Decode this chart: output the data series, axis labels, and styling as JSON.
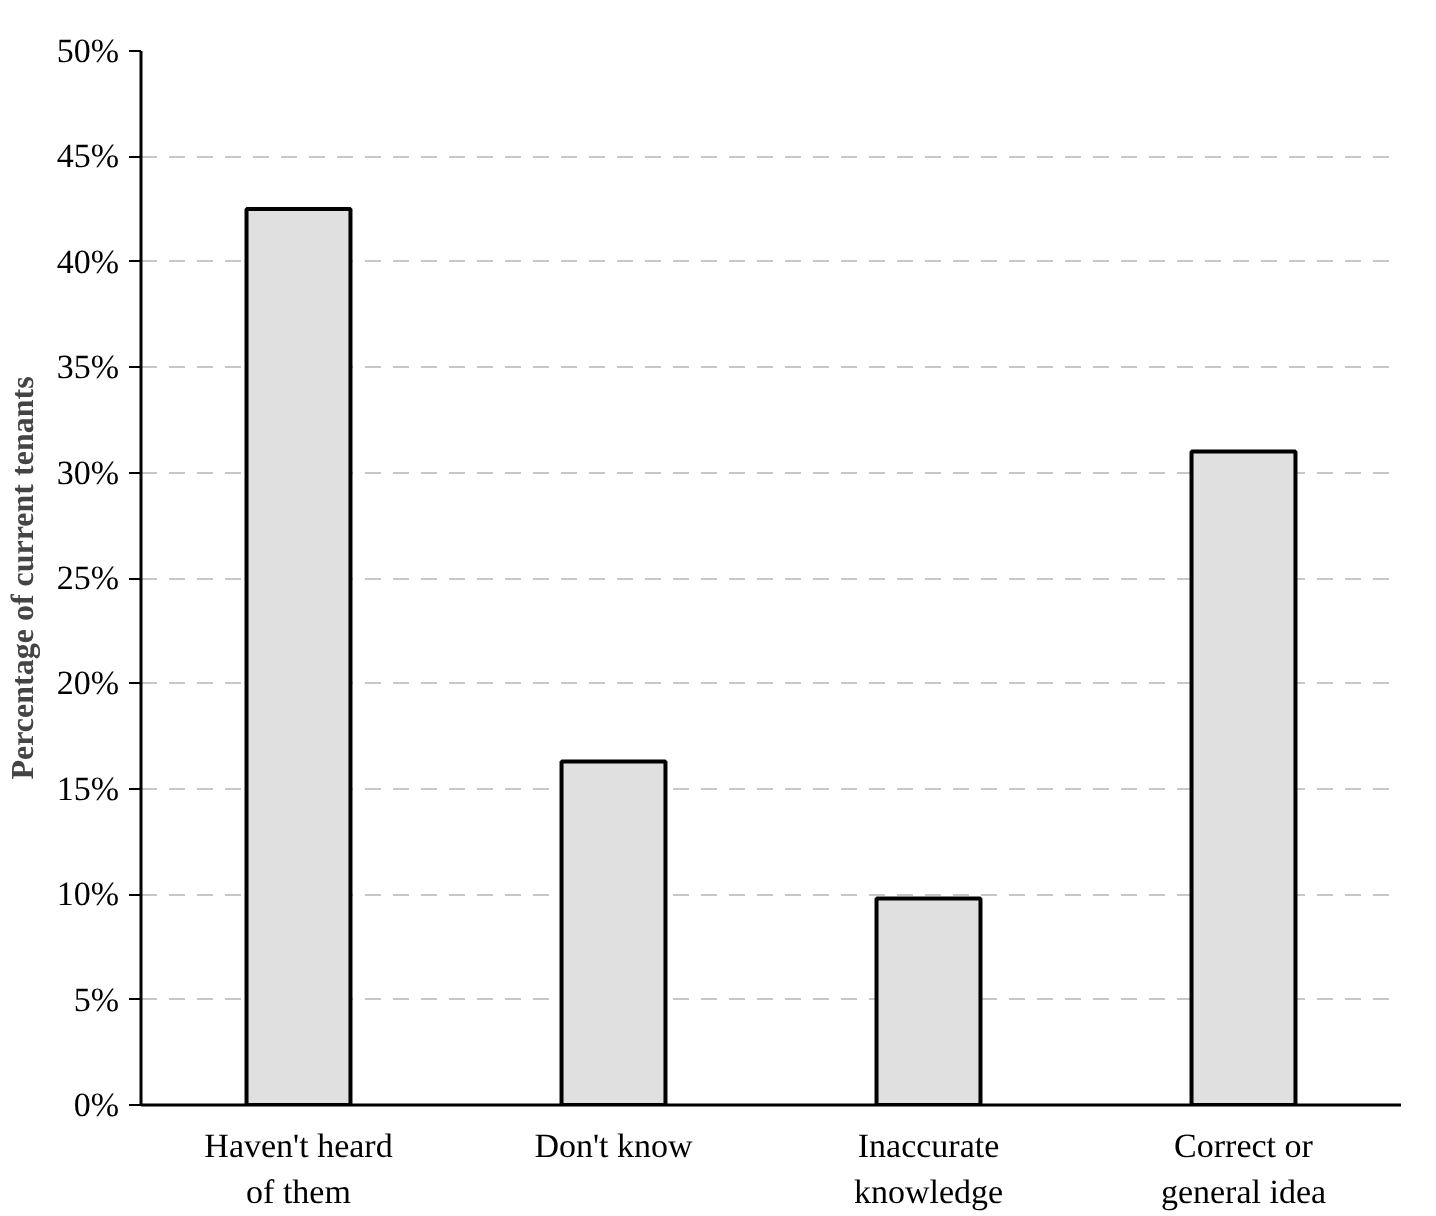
{
  "chart_data": {
    "type": "bar",
    "ylabel": "Percentage of current tenants",
    "categories": [
      "Haven't heard of them",
      "Don't know",
      "Inaccurate knowledge",
      "Correct or general idea"
    ],
    "values": [
      42.5,
      16.3,
      9.8,
      31.0
    ],
    "color": "#e0e0e0",
    "ylim": [
      0,
      50
    ],
    "yticks": [
      {
        "value": 0,
        "label": "0%"
      },
      {
        "value": 5,
        "label": "5%"
      },
      {
        "value": 10,
        "label": "10%"
      },
      {
        "value": 15,
        "label": "15%"
      },
      {
        "value": 20,
        "label": "20%"
      },
      {
        "value": 25,
        "label": "25%"
      },
      {
        "value": 30,
        "label": "30%"
      },
      {
        "value": 35,
        "label": "35%"
      },
      {
        "value": 40,
        "label": "40%"
      },
      {
        "value": 45,
        "label": "45%"
      },
      {
        "value": 50,
        "label": "50%"
      }
    ],
    "grid": "y",
    "line_style": "dashed"
  }
}
